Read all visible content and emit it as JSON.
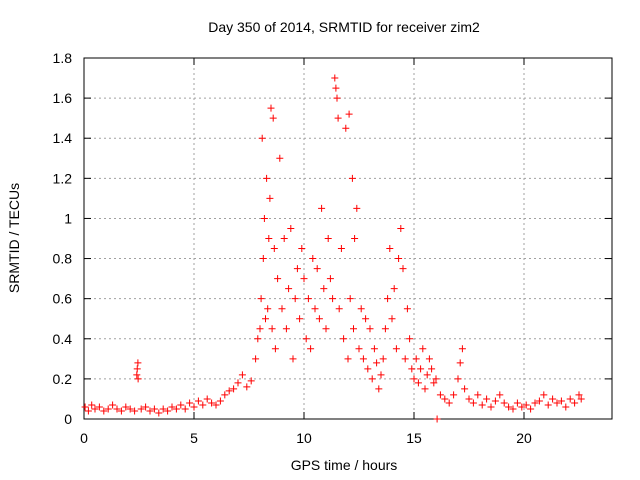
{
  "chart_data": {
    "type": "scatter",
    "title": "Day 350 of 2014, SRMTID for receiver zim2",
    "xlabel": "GPS time / hours",
    "ylabel": "SRMTID / TECUs",
    "xlim": [
      0,
      24
    ],
    "ylim": [
      0,
      1.8
    ],
    "xticks": [
      0,
      5,
      10,
      15,
      20
    ],
    "xtick_labels": [
      "0",
      "5",
      "10",
      "15",
      "20"
    ],
    "yticks": [
      0,
      0.2,
      0.4,
      0.6,
      0.8,
      1,
      1.2,
      1.4,
      1.6,
      1.8
    ],
    "ytick_labels": [
      "0",
      "0.2",
      "0.4",
      "0.6",
      "0.8",
      "1",
      "1.2",
      "1.4",
      "1.6",
      "1.8"
    ],
    "grid": true,
    "marker": "+",
    "color": "#ff0000",
    "series": [
      {
        "name": "SRMTID",
        "points": [
          [
            0.05,
            0.06
          ],
          [
            0.2,
            0.04
          ],
          [
            0.35,
            0.07
          ],
          [
            0.5,
            0.05
          ],
          [
            0.7,
            0.06
          ],
          [
            0.9,
            0.04
          ],
          [
            1.1,
            0.05
          ],
          [
            1.3,
            0.07
          ],
          [
            1.5,
            0.05
          ],
          [
            1.7,
            0.04
          ],
          [
            1.9,
            0.06
          ],
          [
            2.1,
            0.05
          ],
          [
            2.3,
            0.04
          ],
          [
            2.4,
            0.22
          ],
          [
            2.42,
            0.25
          ],
          [
            2.45,
            0.28
          ],
          [
            2.46,
            0.2
          ],
          [
            2.6,
            0.05
          ],
          [
            2.8,
            0.06
          ],
          [
            3.0,
            0.04
          ],
          [
            3.2,
            0.05
          ],
          [
            3.4,
            0.03
          ],
          [
            3.6,
            0.05
          ],
          [
            3.8,
            0.04
          ],
          [
            4.0,
            0.06
          ],
          [
            4.2,
            0.05
          ],
          [
            4.4,
            0.07
          ],
          [
            4.6,
            0.05
          ],
          [
            4.8,
            0.08
          ],
          [
            5.0,
            0.06
          ],
          [
            5.2,
            0.09
          ],
          [
            5.4,
            0.07
          ],
          [
            5.6,
            0.1
          ],
          [
            5.8,
            0.08
          ],
          [
            6.0,
            0.07
          ],
          [
            6.2,
            0.09
          ],
          [
            6.4,
            0.12
          ],
          [
            6.6,
            0.14
          ],
          [
            6.8,
            0.15
          ],
          [
            7.0,
            0.18
          ],
          [
            7.2,
            0.22
          ],
          [
            7.4,
            0.16
          ],
          [
            7.6,
            0.19
          ],
          [
            7.8,
            0.3
          ],
          [
            7.9,
            0.4
          ],
          [
            8.0,
            0.45
          ],
          [
            8.05,
            0.6
          ],
          [
            8.1,
            1.4
          ],
          [
            8.15,
            0.8
          ],
          [
            8.2,
            1.0
          ],
          [
            8.25,
            0.5
          ],
          [
            8.3,
            1.2
          ],
          [
            8.35,
            0.55
          ],
          [
            8.4,
            0.9
          ],
          [
            8.45,
            1.1
          ],
          [
            8.5,
            1.55
          ],
          [
            8.55,
            0.45
          ],
          [
            8.6,
            1.5
          ],
          [
            8.65,
            0.85
          ],
          [
            8.7,
            0.35
          ],
          [
            8.8,
            0.7
          ],
          [
            8.9,
            1.3
          ],
          [
            9.0,
            0.55
          ],
          [
            9.1,
            0.9
          ],
          [
            9.2,
            0.45
          ],
          [
            9.3,
            0.65
          ],
          [
            9.4,
            0.95
          ],
          [
            9.5,
            0.3
          ],
          [
            9.6,
            0.6
          ],
          [
            9.7,
            0.75
          ],
          [
            9.8,
            0.5
          ],
          [
            9.9,
            0.85
          ],
          [
            10.0,
            0.7
          ],
          [
            10.1,
            0.4
          ],
          [
            10.2,
            0.6
          ],
          [
            10.3,
            0.35
          ],
          [
            10.4,
            0.8
          ],
          [
            10.5,
            0.55
          ],
          [
            10.6,
            0.75
          ],
          [
            10.7,
            0.5
          ],
          [
            10.8,
            1.05
          ],
          [
            10.9,
            0.65
          ],
          [
            11.0,
            0.45
          ],
          [
            11.1,
            0.9
          ],
          [
            11.2,
            0.7
          ],
          [
            11.3,
            0.6
          ],
          [
            11.4,
            1.7
          ],
          [
            11.45,
            1.65
          ],
          [
            11.5,
            1.6
          ],
          [
            11.55,
            1.5
          ],
          [
            11.6,
            0.55
          ],
          [
            11.7,
            0.85
          ],
          [
            11.8,
            0.4
          ],
          [
            11.9,
            1.45
          ],
          [
            12.0,
            0.3
          ],
          [
            12.05,
            1.52
          ],
          [
            12.1,
            0.6
          ],
          [
            12.2,
            1.2
          ],
          [
            12.25,
            0.45
          ],
          [
            12.3,
            0.9
          ],
          [
            12.4,
            1.05
          ],
          [
            12.5,
            0.35
          ],
          [
            12.6,
            0.55
          ],
          [
            12.7,
            0.3
          ],
          [
            12.8,
            0.5
          ],
          [
            12.9,
            0.25
          ],
          [
            13.0,
            0.45
          ],
          [
            13.1,
            0.2
          ],
          [
            13.2,
            0.35
          ],
          [
            13.3,
            0.28
          ],
          [
            13.4,
            0.15
          ],
          [
            13.5,
            0.22
          ],
          [
            13.6,
            0.3
          ],
          [
            13.7,
            0.45
          ],
          [
            13.8,
            0.6
          ],
          [
            13.9,
            0.85
          ],
          [
            14.0,
            0.5
          ],
          [
            14.1,
            0.65
          ],
          [
            14.2,
            0.35
          ],
          [
            14.3,
            0.8
          ],
          [
            14.4,
            0.95
          ],
          [
            14.5,
            0.75
          ],
          [
            14.6,
            0.3
          ],
          [
            14.7,
            0.55
          ],
          [
            14.8,
            0.4
          ],
          [
            14.9,
            0.25
          ],
          [
            15.0,
            0.2
          ],
          [
            15.1,
            0.3
          ],
          [
            15.2,
            0.18
          ],
          [
            15.3,
            0.25
          ],
          [
            15.4,
            0.35
          ],
          [
            15.5,
            0.15
          ],
          [
            15.6,
            0.22
          ],
          [
            15.7,
            0.3
          ],
          [
            15.8,
            0.25
          ],
          [
            15.9,
            0.18
          ],
          [
            16.0,
            0.2
          ],
          [
            16.05,
            0.0
          ],
          [
            16.2,
            0.12
          ],
          [
            16.4,
            0.1
          ],
          [
            16.6,
            0.08
          ],
          [
            16.8,
            0.12
          ],
          [
            17.0,
            0.2
          ],
          [
            17.1,
            0.28
          ],
          [
            17.2,
            0.35
          ],
          [
            17.3,
            0.15
          ],
          [
            17.5,
            0.1
          ],
          [
            17.7,
            0.08
          ],
          [
            17.9,
            0.12
          ],
          [
            18.1,
            0.07
          ],
          [
            18.3,
            0.1
          ],
          [
            18.5,
            0.06
          ],
          [
            18.7,
            0.09
          ],
          [
            18.9,
            0.12
          ],
          [
            19.1,
            0.08
          ],
          [
            19.3,
            0.06
          ],
          [
            19.5,
            0.05
          ],
          [
            19.7,
            0.08
          ],
          [
            19.9,
            0.06
          ],
          [
            20.1,
            0.07
          ],
          [
            20.3,
            0.05
          ],
          [
            20.5,
            0.08
          ],
          [
            20.7,
            0.09
          ],
          [
            20.9,
            0.12
          ],
          [
            21.1,
            0.07
          ],
          [
            21.3,
            0.1
          ],
          [
            21.5,
            0.08
          ],
          [
            21.7,
            0.09
          ],
          [
            21.9,
            0.06
          ],
          [
            22.1,
            0.1
          ],
          [
            22.3,
            0.08
          ],
          [
            22.5,
            0.12
          ],
          [
            22.6,
            0.1
          ]
        ]
      }
    ]
  }
}
